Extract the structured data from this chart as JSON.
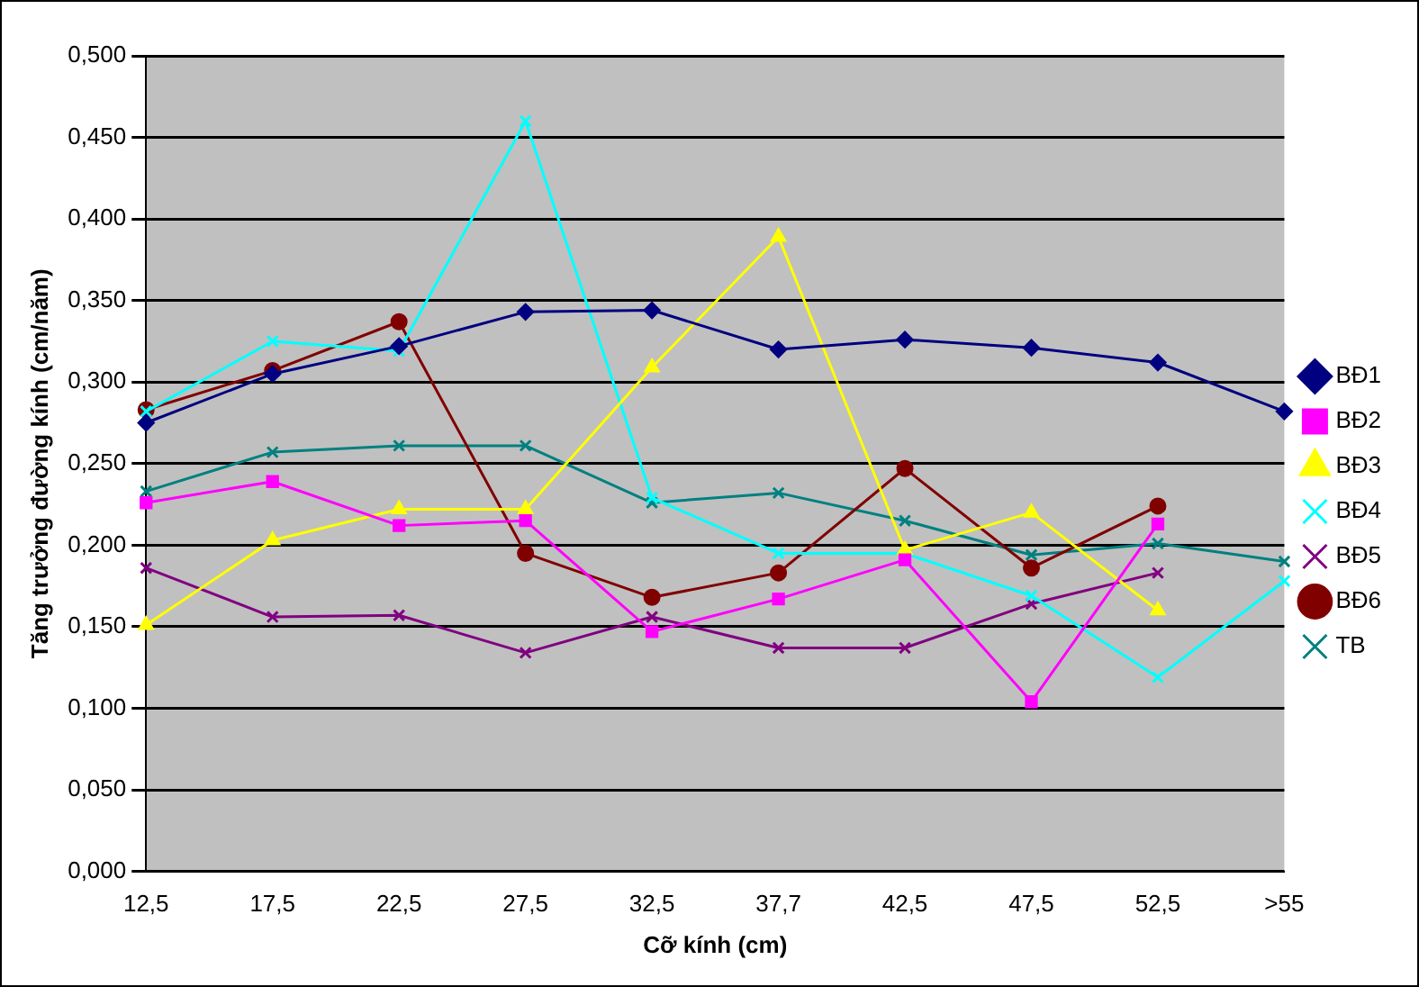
{
  "chart_data": {
    "type": "line",
    "xlabel": "Cỡ kính (cm)",
    "ylabel": "Tăng trưởng đường kính (cm/năm)",
    "categories": [
      "12,5",
      "17,5",
      "22,5",
      "27,5",
      "32,5",
      "37,7",
      "42,5",
      "47,5",
      "52,5",
      ">55"
    ],
    "ylim": [
      0,
      0.5
    ],
    "yticks": [
      {
        "value": 0,
        "label": "0,000"
      },
      {
        "value": 0.05,
        "label": "0,050"
      },
      {
        "value": 0.1,
        "label": "0,100"
      },
      {
        "value": 0.15,
        "label": "0,150"
      },
      {
        "value": 0.2,
        "label": "0,200"
      },
      {
        "value": 0.25,
        "label": "0,250"
      },
      {
        "value": 0.3,
        "label": "0,300"
      },
      {
        "value": 0.35,
        "label": "0,350"
      },
      {
        "value": 0.4,
        "label": "0,400"
      },
      {
        "value": 0.45,
        "label": "0,450"
      },
      {
        "value": 0.5,
        "label": "0,500"
      }
    ],
    "grid": "y",
    "legend": "right",
    "series": [
      {
        "name": "BĐ1",
        "color": "#000080",
        "marker": "diamond",
        "values": [
          0.275,
          0.305,
          0.322,
          0.343,
          0.344,
          0.32,
          0.326,
          0.321,
          0.312,
          0.282
        ]
      },
      {
        "name": "BĐ2",
        "color": "#ff00ff",
        "marker": "square",
        "values": [
          0.226,
          0.239,
          0.212,
          0.215,
          0.147,
          0.167,
          0.191,
          0.104,
          0.213,
          null
        ]
      },
      {
        "name": "BĐ3",
        "color": "#ffff00",
        "marker": "triangle",
        "values": [
          0.151,
          0.203,
          0.222,
          0.222,
          0.309,
          0.389,
          0.197,
          0.22,
          0.16,
          null
        ]
      },
      {
        "name": "BĐ4",
        "color": "#00ffff",
        "marker": "cross",
        "values": [
          0.282,
          0.325,
          0.319,
          0.46,
          0.229,
          0.195,
          0.195,
          0.169,
          0.119,
          0.178
        ]
      },
      {
        "name": "BĐ5",
        "color": "#800080",
        "marker": "cross",
        "values": [
          0.186,
          0.156,
          0.157,
          0.134,
          0.156,
          0.137,
          0.137,
          0.164,
          0.183,
          null
        ]
      },
      {
        "name": "BĐ6",
        "color": "#800000",
        "marker": "circle",
        "values": [
          0.283,
          0.307,
          0.337,
          0.195,
          0.168,
          0.183,
          0.247,
          0.186,
          0.224,
          null
        ]
      },
      {
        "name": "TB",
        "color": "#008080",
        "marker": "cross",
        "values": [
          0.233,
          0.257,
          0.261,
          0.261,
          0.226,
          0.232,
          0.215,
          0.194,
          0.201,
          0.19
        ]
      }
    ]
  }
}
